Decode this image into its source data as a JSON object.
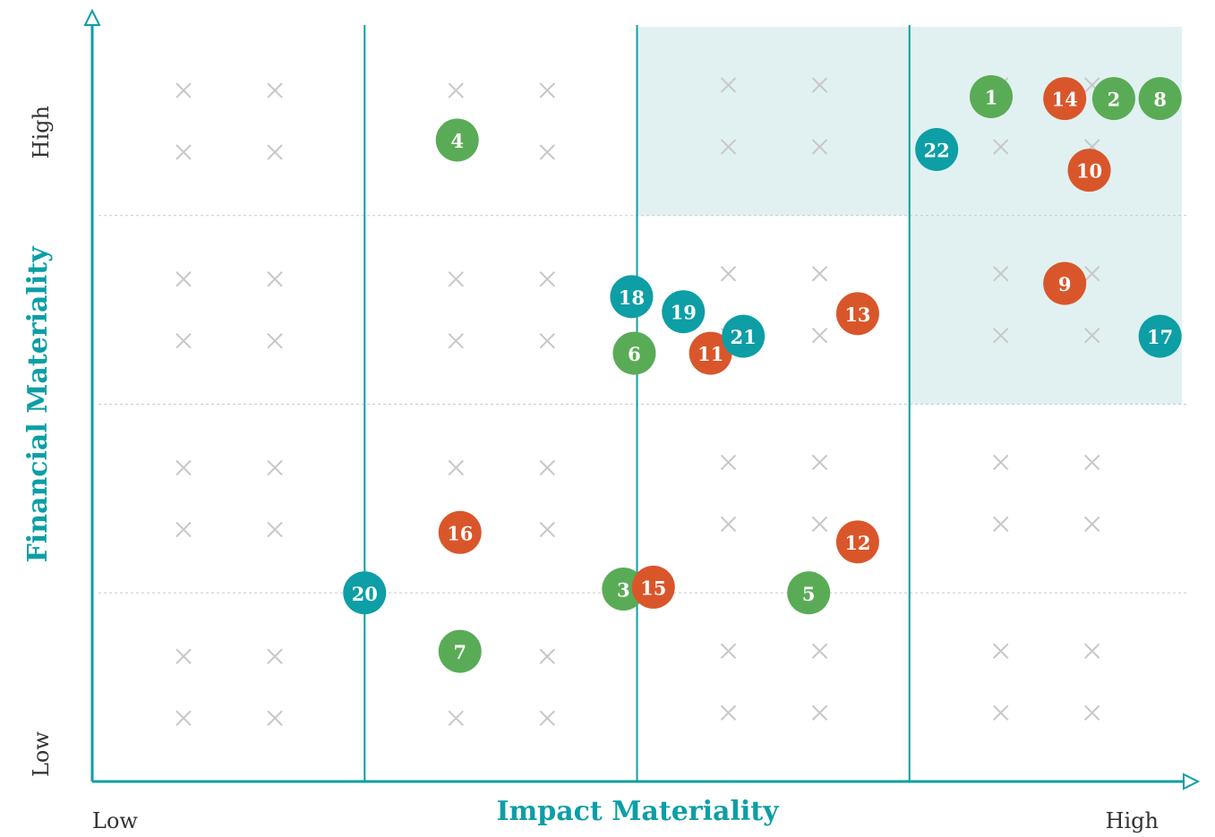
{
  "chart_data": {
    "type": "scatter",
    "xlabel": "Impact Materiality",
    "ylabel": "Financial Materiality",
    "xlim": [
      0,
      4
    ],
    "ylim": [
      0,
      4
    ],
    "xticks": [
      {
        "value": 0,
        "label": "Low"
      },
      {
        "value": 4,
        "label": "High"
      }
    ],
    "yticks": [
      {
        "value": 0,
        "label": "Low"
      },
      {
        "value": 4,
        "label": "High"
      }
    ],
    "series": [
      {
        "color": "#5aab56",
        "labels": [
          1,
          2,
          8,
          4,
          6,
          3,
          5,
          7
        ],
        "x": [
          3.3,
          3.75,
          3.92,
          1.34,
          1.99,
          1.95,
          2.63,
          1.35
        ],
        "y": [
          3.63,
          3.62,
          3.62,
          3.4,
          2.27,
          1.02,
          1.0,
          0.69
        ]
      },
      {
        "color": "#d9562b",
        "labels": [
          14,
          10,
          9,
          13,
          11,
          16,
          12,
          15
        ],
        "x": [
          3.57,
          3.66,
          3.57,
          2.81,
          2.27,
          1.35,
          2.81,
          2.06
        ],
        "y": [
          3.62,
          3.24,
          2.64,
          2.48,
          2.27,
          1.32,
          1.27,
          1.03
        ]
      },
      {
        "color": "#0d9ea6",
        "labels": [
          22,
          17,
          18,
          19,
          21,
          20
        ],
        "x": [
          3.1,
          3.92,
          1.98,
          2.17,
          2.39,
          1.0
        ],
        "y": [
          3.35,
          2.36,
          2.57,
          2.49,
          2.36,
          1.0
        ]
      }
    ]
  }
}
